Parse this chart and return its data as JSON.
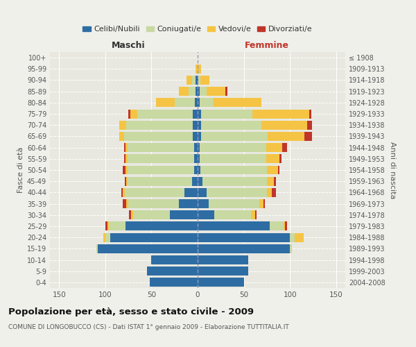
{
  "age_groups": [
    "0-4",
    "5-9",
    "10-14",
    "15-19",
    "20-24",
    "25-29",
    "30-34",
    "35-39",
    "40-44",
    "45-49",
    "50-54",
    "55-59",
    "60-64",
    "65-69",
    "70-74",
    "75-79",
    "80-84",
    "85-89",
    "90-94",
    "95-99",
    "100+"
  ],
  "birth_years": [
    "2004-2008",
    "1999-2003",
    "1994-1998",
    "1989-1993",
    "1984-1988",
    "1979-1983",
    "1974-1978",
    "1969-1973",
    "1964-1968",
    "1959-1963",
    "1954-1958",
    "1949-1953",
    "1944-1948",
    "1939-1943",
    "1934-1938",
    "1929-1933",
    "1924-1928",
    "1919-1923",
    "1914-1918",
    "1909-1913",
    "≤ 1908"
  ],
  "maschi": {
    "celibi": [
      52,
      55,
      50,
      108,
      95,
      78,
      30,
      20,
      14,
      6,
      4,
      4,
      4,
      5,
      5,
      5,
      3,
      2,
      2,
      0,
      0
    ],
    "coniugati": [
      0,
      0,
      0,
      2,
      5,
      18,
      40,
      55,
      65,
      70,
      72,
      72,
      72,
      75,
      72,
      60,
      22,
      8,
      4,
      0,
      0
    ],
    "vedovi": [
      0,
      0,
      0,
      0,
      2,
      2,
      2,
      2,
      2,
      1,
      2,
      2,
      2,
      5,
      8,
      8,
      20,
      10,
      6,
      2,
      0
    ],
    "divorziati": [
      0,
      0,
      0,
      0,
      0,
      2,
      2,
      4,
      2,
      2,
      3,
      2,
      2,
      0,
      0,
      2,
      0,
      0,
      0,
      0,
      0
    ]
  },
  "femmine": {
    "nubili": [
      50,
      55,
      55,
      100,
      100,
      78,
      18,
      12,
      10,
      5,
      3,
      2,
      2,
      4,
      4,
      4,
      2,
      2,
      1,
      0,
      0
    ],
    "coniugate": [
      0,
      0,
      0,
      2,
      5,
      15,
      40,
      55,
      65,
      70,
      72,
      72,
      72,
      72,
      65,
      55,
      15,
      8,
      2,
      0,
      0
    ],
    "vedove": [
      0,
      0,
      0,
      0,
      10,
      2,
      4,
      4,
      5,
      8,
      12,
      15,
      18,
      40,
      50,
      62,
      52,
      20,
      10,
      4,
      0
    ],
    "divorziate": [
      0,
      0,
      0,
      0,
      0,
      2,
      2,
      2,
      5,
      2,
      2,
      2,
      5,
      8,
      5,
      2,
      0,
      2,
      0,
      0,
      0
    ]
  },
  "colors": {
    "celibi": "#2E6DA4",
    "coniugati": "#C8D9A2",
    "vedovi": "#F5C444",
    "divorziati": "#C0352A"
  },
  "title": "Popolazione per età, sesso e stato civile - 2009",
  "subtitle": "COMUNE DI LONGOBUCCO (CS) - Dati ISTAT 1° gennaio 2009 - Elaborazione TUTTITALIA.IT",
  "xlabel_left": "Maschi",
  "xlabel_right": "Femmine",
  "ylabel_left": "Fasce di età",
  "ylabel_right": "Anni di nascita",
  "xlim": 160,
  "bg_color": "#f0f0eb",
  "plot_bg": "#e8e8e0",
  "legend_labels": [
    "Celibi/Nubili",
    "Coniugati/e",
    "Vedovi/e",
    "Divorziati/e"
  ]
}
